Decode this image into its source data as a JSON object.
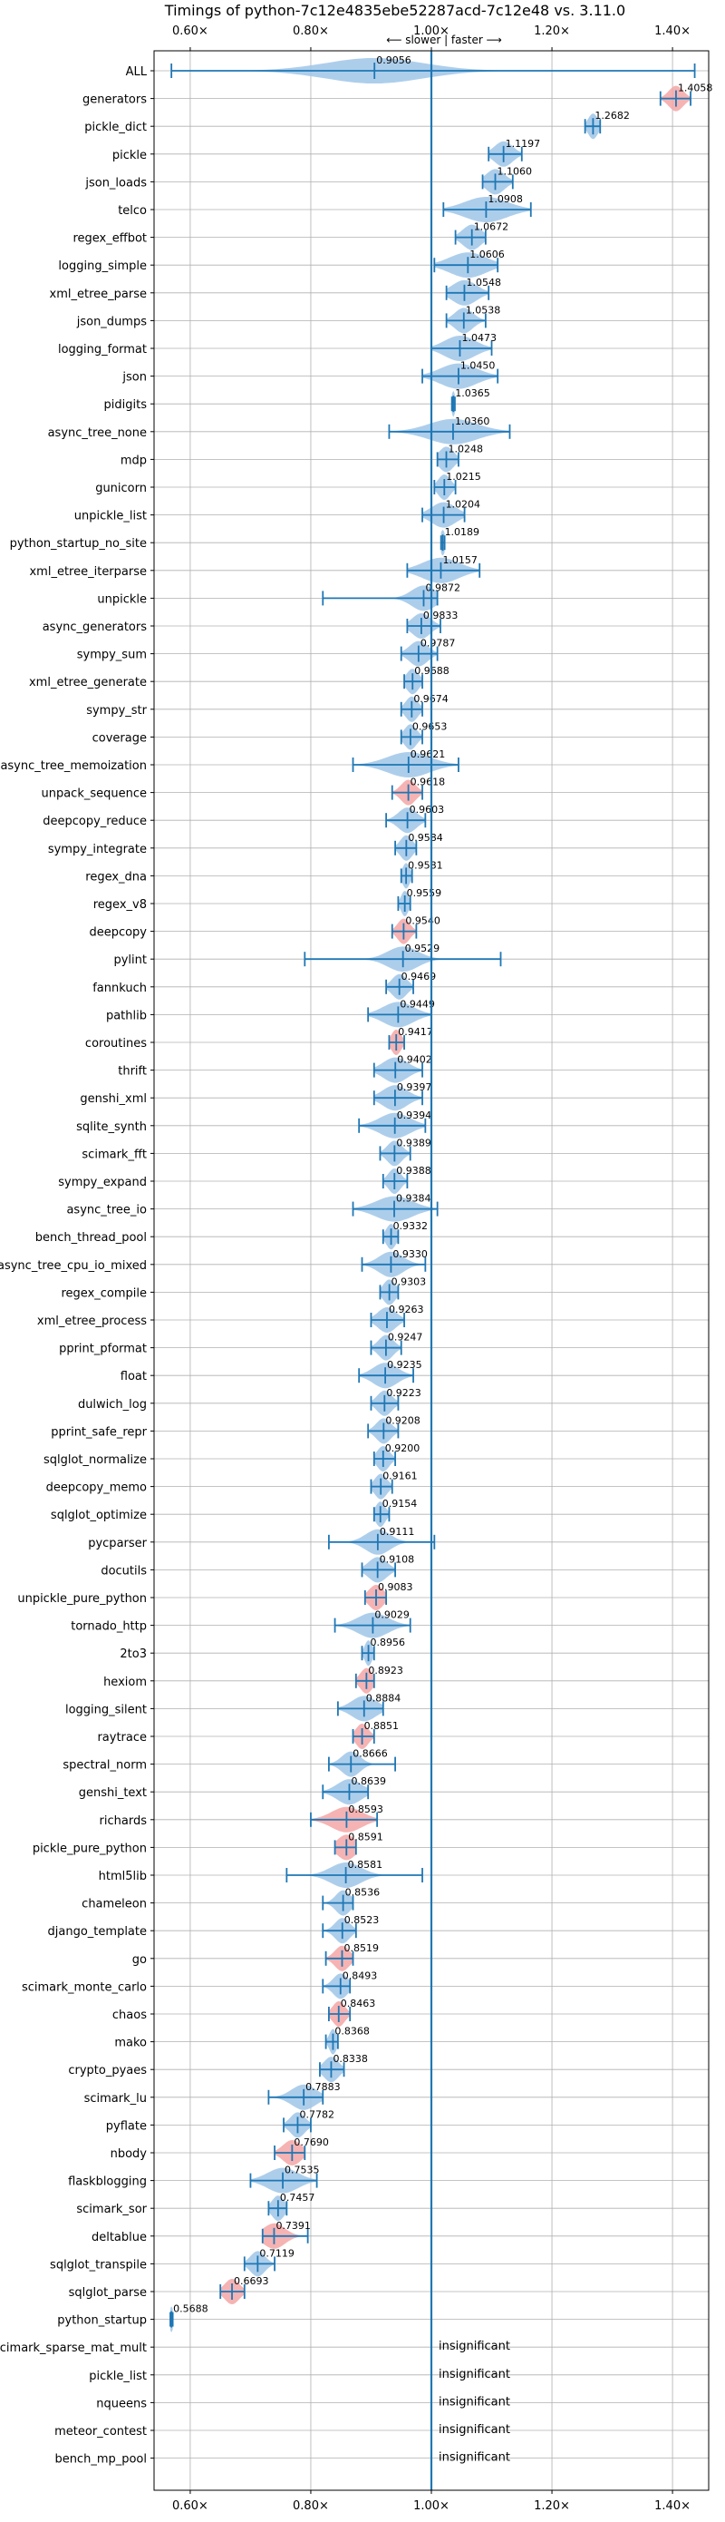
{
  "chart_data": {
    "type": "violin",
    "title": "Timings of python-7c12e4835ebe52287acd-7c12e48 vs. 3.11.0",
    "direction_label": "⟵ slower | faster ⟶",
    "xlim": [
      0.54,
      1.46
    ],
    "xticks": [
      0.6,
      0.8,
      1.0,
      1.2,
      1.4
    ],
    "xtick_labels": [
      "0.60×",
      "0.80×",
      "1.00×",
      "1.20×",
      "1.40×"
    ],
    "reference_line": 1.0,
    "grid": true,
    "colors": {
      "violin": "#9fc5e8",
      "highlight": "#f4a6a6",
      "line": "#1f77b4",
      "grid": "#b0b0b0"
    },
    "insignificant_label": "insignificant",
    "benchmarks": [
      {
        "name": "ALL",
        "value": 0.9056,
        "min": 0.5688,
        "max": 1.4368,
        "spread": 0.08
      },
      {
        "name": "generators",
        "value": 1.4058,
        "min": 1.38,
        "max": 1.43,
        "spread": 0.012,
        "highlight": true
      },
      {
        "name": "pickle_dict",
        "value": 1.2682,
        "min": 1.255,
        "max": 1.28,
        "spread": 0.008
      },
      {
        "name": "pickle",
        "value": 1.1197,
        "min": 1.095,
        "max": 1.15,
        "spread": 0.015
      },
      {
        "name": "json_loads",
        "value": 1.106,
        "min": 1.085,
        "max": 1.135,
        "spread": 0.015
      },
      {
        "name": "telco",
        "value": 1.0908,
        "min": 1.02,
        "max": 1.165,
        "spread": 0.035
      },
      {
        "name": "regex_effbot",
        "value": 1.0672,
        "min": 1.04,
        "max": 1.09,
        "spread": 0.015
      },
      {
        "name": "logging_simple",
        "value": 1.0606,
        "min": 1.005,
        "max": 1.11,
        "spread": 0.03
      },
      {
        "name": "xml_etree_parse",
        "value": 1.0548,
        "min": 1.025,
        "max": 1.095,
        "spread": 0.02
      },
      {
        "name": "json_dumps",
        "value": 1.0538,
        "min": 1.025,
        "max": 1.09,
        "spread": 0.015
      },
      {
        "name": "logging_format",
        "value": 1.0473,
        "min": 1.0,
        "max": 1.1,
        "spread": 0.025
      },
      {
        "name": "json",
        "value": 1.045,
        "min": 0.985,
        "max": 1.11,
        "spread": 0.03
      },
      {
        "name": "pidigits",
        "value": 1.0365,
        "min": 1.034,
        "max": 1.039,
        "spread": 0.003
      },
      {
        "name": "async_tree_none",
        "value": 1.036,
        "min": 0.93,
        "max": 1.13,
        "spread": 0.04
      },
      {
        "name": "mdp",
        "value": 1.0248,
        "min": 1.01,
        "max": 1.045,
        "spread": 0.012
      },
      {
        "name": "gunicorn",
        "value": 1.0215,
        "min": 1.005,
        "max": 1.04,
        "spread": 0.01
      },
      {
        "name": "unpickle_list",
        "value": 1.0204,
        "min": 0.985,
        "max": 1.055,
        "spread": 0.02
      },
      {
        "name": "python_startup_no_site",
        "value": 1.0189,
        "min": 1.016,
        "max": 1.022,
        "spread": 0.004
      },
      {
        "name": "xml_etree_iterparse",
        "value": 1.0157,
        "min": 0.96,
        "max": 1.08,
        "spread": 0.03
      },
      {
        "name": "unpickle",
        "value": 0.9872,
        "min": 0.82,
        "max": 1.01,
        "spread": 0.02
      },
      {
        "name": "async_generators",
        "value": 0.9833,
        "min": 0.96,
        "max": 1.015,
        "spread": 0.015
      },
      {
        "name": "sympy_sum",
        "value": 0.9787,
        "min": 0.95,
        "max": 1.01,
        "spread": 0.015
      },
      {
        "name": "xml_etree_generate",
        "value": 0.9688,
        "min": 0.955,
        "max": 0.985,
        "spread": 0.01
      },
      {
        "name": "sympy_str",
        "value": 0.9674,
        "min": 0.95,
        "max": 0.985,
        "spread": 0.01
      },
      {
        "name": "coverage",
        "value": 0.9653,
        "min": 0.95,
        "max": 0.985,
        "spread": 0.01
      },
      {
        "name": "async_tree_memoization",
        "value": 0.9621,
        "min": 0.87,
        "max": 1.045,
        "spread": 0.035
      },
      {
        "name": "unpack_sequence",
        "value": 0.9618,
        "min": 0.935,
        "max": 0.985,
        "spread": 0.012,
        "highlight": true
      },
      {
        "name": "deepcopy_reduce",
        "value": 0.9603,
        "min": 0.925,
        "max": 0.99,
        "spread": 0.015
      },
      {
        "name": "sympy_integrate",
        "value": 0.9584,
        "min": 0.94,
        "max": 0.975,
        "spread": 0.01
      },
      {
        "name": "regex_dna",
        "value": 0.9581,
        "min": 0.95,
        "max": 0.968,
        "spread": 0.006
      },
      {
        "name": "regex_v8",
        "value": 0.9559,
        "min": 0.945,
        "max": 0.965,
        "spread": 0.006
      },
      {
        "name": "deepcopy",
        "value": 0.954,
        "min": 0.935,
        "max": 0.975,
        "spread": 0.01,
        "highlight": true
      },
      {
        "name": "pylint",
        "value": 0.9529,
        "min": 0.79,
        "max": 1.115,
        "spread": 0.025
      },
      {
        "name": "fannkuch",
        "value": 0.9469,
        "min": 0.925,
        "max": 0.97,
        "spread": 0.012
      },
      {
        "name": "pathlib",
        "value": 0.9449,
        "min": 0.895,
        "max": 1.0,
        "spread": 0.025
      },
      {
        "name": "coroutines",
        "value": 0.9417,
        "min": 0.93,
        "max": 0.955,
        "spread": 0.008,
        "highlight": true
      },
      {
        "name": "thrift",
        "value": 0.9402,
        "min": 0.905,
        "max": 0.985,
        "spread": 0.02
      },
      {
        "name": "genshi_xml",
        "value": 0.9397,
        "min": 0.905,
        "max": 0.985,
        "spread": 0.02
      },
      {
        "name": "sqlite_synth",
        "value": 0.9394,
        "min": 0.88,
        "max": 0.99,
        "spread": 0.025
      },
      {
        "name": "scimark_fft",
        "value": 0.9389,
        "min": 0.915,
        "max": 0.965,
        "spread": 0.012
      },
      {
        "name": "sympy_expand",
        "value": 0.9388,
        "min": 0.92,
        "max": 0.96,
        "spread": 0.01
      },
      {
        "name": "async_tree_io",
        "value": 0.9384,
        "min": 0.87,
        "max": 1.01,
        "spread": 0.03
      },
      {
        "name": "bench_thread_pool",
        "value": 0.9332,
        "min": 0.92,
        "max": 0.945,
        "spread": 0.008
      },
      {
        "name": "async_tree_cpu_io_mixed",
        "value": 0.933,
        "min": 0.885,
        "max": 0.99,
        "spread": 0.02
      },
      {
        "name": "regex_compile",
        "value": 0.9303,
        "min": 0.915,
        "max": 0.945,
        "spread": 0.01
      },
      {
        "name": "xml_etree_process",
        "value": 0.9263,
        "min": 0.9,
        "max": 0.955,
        "spread": 0.015
      },
      {
        "name": "pprint_pformat",
        "value": 0.9247,
        "min": 0.9,
        "max": 0.95,
        "spread": 0.012
      },
      {
        "name": "float",
        "value": 0.9235,
        "min": 0.88,
        "max": 0.97,
        "spread": 0.02
      },
      {
        "name": "dulwich_log",
        "value": 0.9223,
        "min": 0.9,
        "max": 0.945,
        "spread": 0.012
      },
      {
        "name": "pprint_safe_repr",
        "value": 0.9208,
        "min": 0.895,
        "max": 0.945,
        "spread": 0.012
      },
      {
        "name": "sqlglot_normalize",
        "value": 0.92,
        "min": 0.905,
        "max": 0.94,
        "spread": 0.01
      },
      {
        "name": "deepcopy_memo",
        "value": 0.9161,
        "min": 0.9,
        "max": 0.935,
        "spread": 0.01
      },
      {
        "name": "sqlglot_optimize",
        "value": 0.9154,
        "min": 0.905,
        "max": 0.93,
        "spread": 0.008
      },
      {
        "name": "pycparser",
        "value": 0.9111,
        "min": 0.83,
        "max": 1.005,
        "spread": 0.02
      },
      {
        "name": "docutils",
        "value": 0.9108,
        "min": 0.885,
        "max": 0.94,
        "spread": 0.015
      },
      {
        "name": "unpickle_pure_python",
        "value": 0.9083,
        "min": 0.89,
        "max": 0.925,
        "spread": 0.012,
        "highlight": true
      },
      {
        "name": "tornado_http",
        "value": 0.9029,
        "min": 0.84,
        "max": 0.965,
        "spread": 0.025
      },
      {
        "name": "2to3",
        "value": 0.8956,
        "min": 0.885,
        "max": 0.905,
        "spread": 0.006
      },
      {
        "name": "hexiom",
        "value": 0.8923,
        "min": 0.875,
        "max": 0.905,
        "spread": 0.01,
        "highlight": true
      },
      {
        "name": "logging_silent",
        "value": 0.8884,
        "min": 0.845,
        "max": 0.92,
        "spread": 0.02
      },
      {
        "name": "raytrace",
        "value": 0.8851,
        "min": 0.87,
        "max": 0.905,
        "spread": 0.01,
        "highlight": true
      },
      {
        "name": "spectral_norm",
        "value": 0.8666,
        "min": 0.83,
        "max": 0.94,
        "spread": 0.015
      },
      {
        "name": "genshi_text",
        "value": 0.8639,
        "min": 0.82,
        "max": 0.895,
        "spread": 0.02
      },
      {
        "name": "richards",
        "value": 0.8593,
        "min": 0.8,
        "max": 0.91,
        "spread": 0.025,
        "highlight": true
      },
      {
        "name": "pickle_pure_python",
        "value": 0.8591,
        "min": 0.84,
        "max": 0.875,
        "spread": 0.015,
        "highlight": true
      },
      {
        "name": "html5lib",
        "value": 0.8581,
        "min": 0.76,
        "max": 0.985,
        "spread": 0.025
      },
      {
        "name": "chameleon",
        "value": 0.8536,
        "min": 0.82,
        "max": 0.87,
        "spread": 0.012
      },
      {
        "name": "django_template",
        "value": 0.8523,
        "min": 0.82,
        "max": 0.875,
        "spread": 0.012
      },
      {
        "name": "go",
        "value": 0.8519,
        "min": 0.825,
        "max": 0.87,
        "spread": 0.012,
        "highlight": true
      },
      {
        "name": "scimark_monte_carlo",
        "value": 0.8493,
        "min": 0.82,
        "max": 0.865,
        "spread": 0.012
      },
      {
        "name": "chaos",
        "value": 0.8463,
        "min": 0.83,
        "max": 0.865,
        "spread": 0.01,
        "highlight": true
      },
      {
        "name": "mako",
        "value": 0.8368,
        "min": 0.825,
        "max": 0.845,
        "spread": 0.006
      },
      {
        "name": "crypto_pyaes",
        "value": 0.8338,
        "min": 0.815,
        "max": 0.855,
        "spread": 0.012
      },
      {
        "name": "scimark_lu",
        "value": 0.7883,
        "min": 0.73,
        "max": 0.82,
        "spread": 0.02
      },
      {
        "name": "pyflate",
        "value": 0.7782,
        "min": 0.755,
        "max": 0.8,
        "spread": 0.012
      },
      {
        "name": "nbody",
        "value": 0.769,
        "min": 0.74,
        "max": 0.79,
        "spread": 0.015,
        "highlight": true
      },
      {
        "name": "flaskblogging",
        "value": 0.7535,
        "min": 0.7,
        "max": 0.81,
        "spread": 0.025
      },
      {
        "name": "scimark_sor",
        "value": 0.7457,
        "min": 0.73,
        "max": 0.76,
        "spread": 0.01
      },
      {
        "name": "deltablue",
        "value": 0.7391,
        "min": 0.72,
        "max": 0.795,
        "spread": 0.018,
        "highlight": true
      },
      {
        "name": "sqlglot_transpile",
        "value": 0.7119,
        "min": 0.69,
        "max": 0.74,
        "spread": 0.012
      },
      {
        "name": "sqlglot_parse",
        "value": 0.6693,
        "min": 0.65,
        "max": 0.69,
        "spread": 0.012,
        "highlight": true
      },
      {
        "name": "python_startup",
        "value": 0.5688,
        "min": 0.567,
        "max": 0.571,
        "spread": 0.003
      },
      {
        "name": "scimark_sparse_mat_mult",
        "insignificant": true
      },
      {
        "name": "pickle_list",
        "insignificant": true
      },
      {
        "name": "nqueens",
        "insignificant": true
      },
      {
        "name": "meteor_contest",
        "insignificant": true
      },
      {
        "name": "bench_mp_pool",
        "insignificant": true
      }
    ]
  }
}
